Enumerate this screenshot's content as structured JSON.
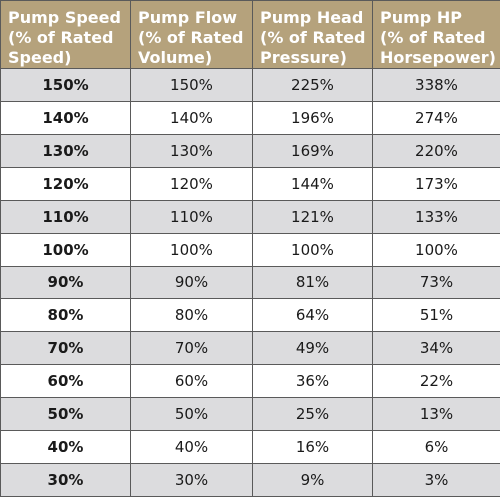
{
  "headers": [
    [
      "Pump Speed",
      "(% of Rated",
      "Speed)"
    ],
    [
      "Pump Flow",
      "(% of Rated",
      "Volume)"
    ],
    [
      "Pump Head",
      "(% of Rated",
      "Pressure)"
    ],
    [
      "Pump HP",
      "(% of Rated",
      "Horsepower)"
    ]
  ],
  "rows": [
    [
      "150%",
      "150%",
      "225%",
      "338%"
    ],
    [
      "140%",
      "140%",
      "196%",
      "274%"
    ],
    [
      "130%",
      "130%",
      "169%",
      "220%"
    ],
    [
      "120%",
      "120%",
      "144%",
      "173%"
    ],
    [
      "110%",
      "110%",
      "121%",
      "133%"
    ],
    [
      "100%",
      "100%",
      "100%",
      "100%"
    ],
    [
      "90%",
      "90%",
      "81%",
      "73%"
    ],
    [
      "80%",
      "80%",
      "64%",
      "51%"
    ],
    [
      "70%",
      "70%",
      "49%",
      "34%"
    ],
    [
      "60%",
      "60%",
      "36%",
      "22%"
    ],
    [
      "50%",
      "50%",
      "25%",
      "13%"
    ],
    [
      "40%",
      "40%",
      "16%",
      "6%"
    ],
    [
      "30%",
      "30%",
      "9%",
      "3%"
    ]
  ],
  "colors": {
    "header_bg": "#b5a27c",
    "header_text": "#ffffff",
    "shaded_row": "#dcdcde",
    "border": "#5a5a5a"
  }
}
